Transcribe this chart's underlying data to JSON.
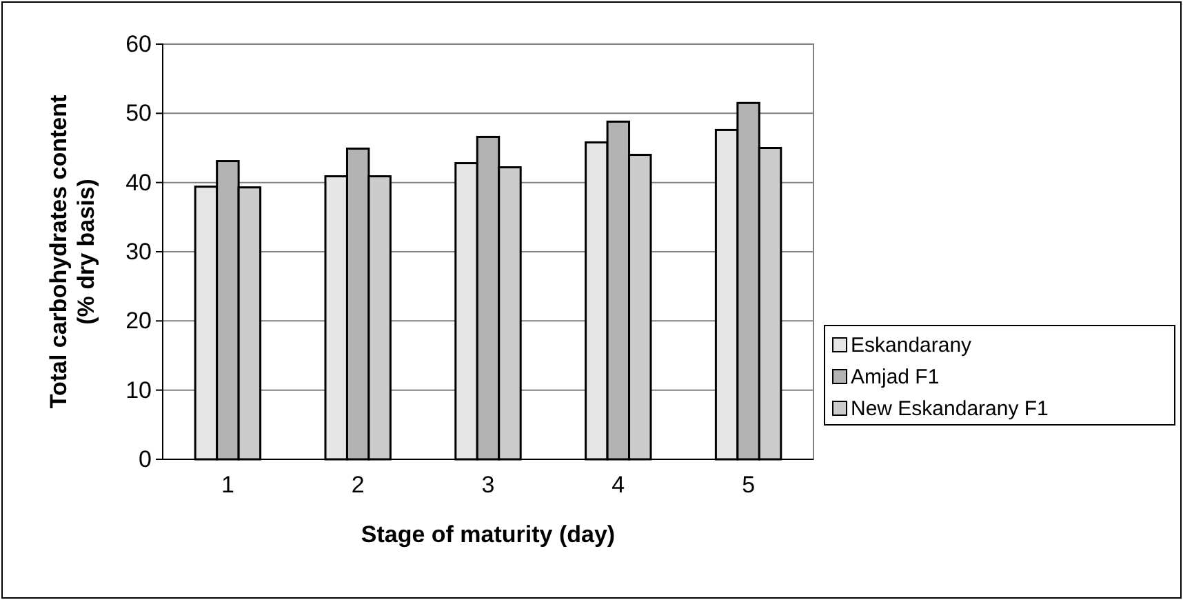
{
  "chart_data": {
    "type": "bar",
    "xlabel": "Stage of maturity (day)",
    "ylabel": "Total carbohydrates content (% dry basis)",
    "categories": [
      "1",
      "2",
      "3",
      "4",
      "5"
    ],
    "series": [
      {
        "name": "Eskandarany",
        "color": "#e6e6e6",
        "values": [
          39.4,
          40.9,
          42.8,
          45.8,
          47.6
        ]
      },
      {
        "name": "Amjad F1",
        "color": "#b3b3b3",
        "values": [
          43.1,
          44.9,
          46.6,
          48.8,
          51.5
        ]
      },
      {
        "name": "New Eskandarany F1",
        "color": "#cccccc",
        "values": [
          39.3,
          40.9,
          42.2,
          44.0,
          45.0
        ]
      }
    ],
    "ylim": [
      0,
      60
    ],
    "yticks": [
      0,
      10,
      20,
      30,
      40,
      50,
      60
    ],
    "grid": "y",
    "legend": "right"
  }
}
